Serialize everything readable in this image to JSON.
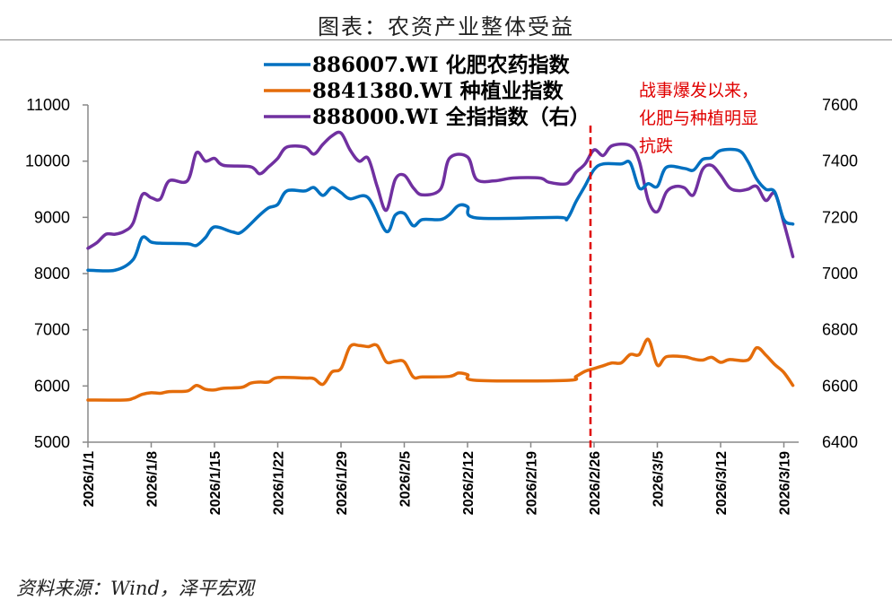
{
  "title": "图表：农资产业整体受益",
  "source": "资料来源：Wind，泽平宏观",
  "chart_data": {
    "type": "line",
    "title": "图表：农资产业整体受益",
    "x_ticks": [
      "2026/1/1",
      "2026/1/8",
      "2026/1/15",
      "2026/1/22",
      "2026/1/29",
      "2026/2/5",
      "2026/2/12",
      "2026/2/19",
      "2026/2/26",
      "2026/3/5",
      "2026/3/12",
      "2026/3/19"
    ],
    "y_left": {
      "range": [
        5000,
        11000
      ],
      "ticks": [
        5000,
        6000,
        7000,
        8000,
        9000,
        10000,
        11000
      ]
    },
    "y_right": {
      "range": [
        6400,
        7600
      ],
      "ticks": [
        6400,
        6600,
        6800,
        7000,
        7200,
        7400,
        7600
      ]
    },
    "grid": false,
    "legend_placement": "top-center",
    "annotation": {
      "date": "2026/2/26",
      "lines": [
        "战事爆发以来，",
        "化肥与种植明显",
        "抗跌"
      ],
      "color": "#e00000",
      "style": "dashed-vertical"
    },
    "series": [
      {
        "name": "886007.WI 化肥农药指数",
        "axis": "left",
        "color": "#0070c0",
        "points": [
          [
            "2026/1/1",
            8060
          ],
          [
            "2026/1/4",
            8060
          ],
          [
            "2026/1/6",
            8250
          ],
          [
            "2026/1/7",
            8640
          ],
          [
            "2026/1/8",
            8560
          ],
          [
            "2026/1/9",
            8540
          ],
          [
            "2026/1/12",
            8530
          ],
          [
            "2026/1/13",
            8500
          ],
          [
            "2026/1/14",
            8640
          ],
          [
            "2026/1/15",
            8830
          ],
          [
            "2026/1/17",
            8740
          ],
          [
            "2026/1/18",
            8740
          ],
          [
            "2026/1/20",
            9040
          ],
          [
            "2026/1/21",
            9170
          ],
          [
            "2026/1/22",
            9230
          ],
          [
            "2026/1/23",
            9470
          ],
          [
            "2026/1/25",
            9470
          ],
          [
            "2026/1/26",
            9530
          ],
          [
            "2026/1/27",
            9390
          ],
          [
            "2026/1/28",
            9530
          ],
          [
            "2026/1/29",
            9440
          ],
          [
            "2026/1/30",
            9330
          ],
          [
            "2026/2/1",
            9350
          ],
          [
            "2026/2/3",
            8750
          ],
          [
            "2026/2/4",
            9040
          ],
          [
            "2026/2/5",
            9070
          ],
          [
            "2026/2/6",
            8850
          ],
          [
            "2026/2/7",
            8960
          ],
          [
            "2026/2/9",
            8960
          ],
          [
            "2026/2/10",
            9050
          ],
          [
            "2026/2/11",
            9210
          ],
          [
            "2026/2/12",
            9190
          ],
          [
            "2026/2/13",
            8990
          ],
          [
            "2026/2/22",
            9000
          ],
          [
            "2026/2/23",
            8970
          ],
          [
            "2026/2/24",
            9280
          ],
          [
            "2026/2/25",
            9560
          ],
          [
            "2026/2/26",
            9850
          ],
          [
            "2026/2/27",
            9950
          ],
          [
            "2026/3/1",
            9950
          ],
          [
            "2026/3/2",
            9970
          ],
          [
            "2026/3/3",
            9520
          ],
          [
            "2026/3/4",
            9600
          ],
          [
            "2026/3/5",
            9550
          ],
          [
            "2026/3/6",
            9890
          ],
          [
            "2026/3/8",
            9870
          ],
          [
            "2026/3/9",
            9840
          ],
          [
            "2026/3/10",
            10030
          ],
          [
            "2026/3/11",
            10060
          ],
          [
            "2026/3/12",
            10190
          ],
          [
            "2026/3/14",
            10190
          ],
          [
            "2026/3/15",
            10000
          ],
          [
            "2026/3/16",
            9680
          ],
          [
            "2026/3/17",
            9500
          ],
          [
            "2026/3/18",
            9450
          ],
          [
            "2026/3/19",
            8960
          ],
          [
            "2026/3/20",
            8880
          ]
        ]
      },
      {
        "name": "8841380.WI 种植业指数",
        "axis": "left",
        "color": "#e46c0a",
        "points": [
          [
            "2026/1/1",
            5750
          ],
          [
            "2026/1/5",
            5750
          ],
          [
            "2026/1/6",
            5780
          ],
          [
            "2026/1/7",
            5850
          ],
          [
            "2026/1/8",
            5880
          ],
          [
            "2026/1/9",
            5870
          ],
          [
            "2026/1/10",
            5900
          ],
          [
            "2026/1/12",
            5910
          ],
          [
            "2026/1/13",
            6010
          ],
          [
            "2026/1/14",
            5940
          ],
          [
            "2026/1/15",
            5930
          ],
          [
            "2026/1/16",
            5960
          ],
          [
            "2026/1/18",
            5975
          ],
          [
            "2026/1/19",
            6050
          ],
          [
            "2026/1/20",
            6070
          ],
          [
            "2026/1/21",
            6070
          ],
          [
            "2026/1/22",
            6150
          ],
          [
            "2026/1/25",
            6140
          ],
          [
            "2026/1/26",
            6130
          ],
          [
            "2026/1/27",
            6030
          ],
          [
            "2026/1/28",
            6250
          ],
          [
            "2026/1/29",
            6310
          ],
          [
            "2026/1/30",
            6700
          ],
          [
            "2026/1/31",
            6720
          ],
          [
            "2026/2/1",
            6700
          ],
          [
            "2026/2/2",
            6720
          ],
          [
            "2026/2/3",
            6430
          ],
          [
            "2026/2/4",
            6440
          ],
          [
            "2026/2/5",
            6430
          ],
          [
            "2026/2/6",
            6160
          ],
          [
            "2026/2/7",
            6160
          ],
          [
            "2026/2/10",
            6170
          ],
          [
            "2026/2/11",
            6230
          ],
          [
            "2026/2/12",
            6200
          ],
          [
            "2026/2/13",
            6100
          ],
          [
            "2026/2/23",
            6100
          ],
          [
            "2026/2/24",
            6170
          ],
          [
            "2026/2/25",
            6260
          ],
          [
            "2026/2/26",
            6310
          ],
          [
            "2026/2/27",
            6360
          ],
          [
            "2026/2/28",
            6410
          ],
          [
            "2026/3/1",
            6410
          ],
          [
            "2026/3/2",
            6560
          ],
          [
            "2026/3/3",
            6560
          ],
          [
            "2026/3/4",
            6830
          ],
          [
            "2026/3/5",
            6370
          ],
          [
            "2026/3/6",
            6520
          ],
          [
            "2026/3/8",
            6520
          ],
          [
            "2026/3/9",
            6480
          ],
          [
            "2026/3/10",
            6460
          ],
          [
            "2026/3/11",
            6510
          ],
          [
            "2026/3/12",
            6420
          ],
          [
            "2026/3/13",
            6470
          ],
          [
            "2026/3/15",
            6460
          ],
          [
            "2026/3/16",
            6680
          ],
          [
            "2026/3/17",
            6550
          ],
          [
            "2026/3/18",
            6380
          ],
          [
            "2026/3/19",
            6240
          ],
          [
            "2026/3/20",
            6010
          ]
        ]
      },
      {
        "name": "888000.WI 全指指数（右）",
        "axis": "right",
        "color": "#7030a0",
        "points": [
          [
            "2026/1/1",
            7090
          ],
          [
            "2026/1/2",
            7110
          ],
          [
            "2026/1/3",
            7140
          ],
          [
            "2026/1/4",
            7140
          ],
          [
            "2026/1/5",
            7150
          ],
          [
            "2026/1/6",
            7180
          ],
          [
            "2026/1/7",
            7280
          ],
          [
            "2026/1/8",
            7270
          ],
          [
            "2026/1/9",
            7265
          ],
          [
            "2026/1/10",
            7330
          ],
          [
            "2026/1/12",
            7330
          ],
          [
            "2026/1/13",
            7430
          ],
          [
            "2026/1/14",
            7400
          ],
          [
            "2026/1/15",
            7410
          ],
          [
            "2026/1/16",
            7385
          ],
          [
            "2026/1/19",
            7380
          ],
          [
            "2026/1/20",
            7355
          ],
          [
            "2026/1/21",
            7380
          ],
          [
            "2026/1/22",
            7410
          ],
          [
            "2026/1/23",
            7450
          ],
          [
            "2026/1/25",
            7450
          ],
          [
            "2026/1/26",
            7425
          ],
          [
            "2026/1/27",
            7460
          ],
          [
            "2026/1/28",
            7490
          ],
          [
            "2026/1/29",
            7500
          ],
          [
            "2026/1/30",
            7440
          ],
          [
            "2026/1/31",
            7400
          ],
          [
            "2026/2/1",
            7410
          ],
          [
            "2026/2/2",
            7310
          ],
          [
            "2026/2/3",
            7225
          ],
          [
            "2026/2/4",
            7335
          ],
          [
            "2026/2/5",
            7350
          ],
          [
            "2026/2/6",
            7305
          ],
          [
            "2026/2/7",
            7280
          ],
          [
            "2026/2/9",
            7300
          ],
          [
            "2026/2/10",
            7410
          ],
          [
            "2026/2/12",
            7415
          ],
          [
            "2026/2/13",
            7335
          ],
          [
            "2026/2/15",
            7330
          ],
          [
            "2026/2/17",
            7340
          ],
          [
            "2026/2/20",
            7340
          ],
          [
            "2026/2/21",
            7325
          ],
          [
            "2026/2/23",
            7320
          ],
          [
            "2026/2/24",
            7360
          ],
          [
            "2026/2/25",
            7390
          ],
          [
            "2026/2/26",
            7440
          ],
          [
            "2026/2/27",
            7420
          ],
          [
            "2026/2/28",
            7455
          ],
          [
            "2026/3/2",
            7455
          ],
          [
            "2026/3/3",
            7400
          ],
          [
            "2026/3/4",
            7260
          ],
          [
            "2026/3/5",
            7220
          ],
          [
            "2026/3/6",
            7290
          ],
          [
            "2026/3/7",
            7310
          ],
          [
            "2026/3/8",
            7305
          ],
          [
            "2026/3/9",
            7280
          ],
          [
            "2026/3/10",
            7370
          ],
          [
            "2026/3/11",
            7385
          ],
          [
            "2026/3/12",
            7350
          ],
          [
            "2026/3/13",
            7305
          ],
          [
            "2026/3/14",
            7295
          ],
          [
            "2026/3/15",
            7300
          ],
          [
            "2026/3/16",
            7310
          ],
          [
            "2026/3/17",
            7260
          ],
          [
            "2026/3/18",
            7285
          ],
          [
            "2026/3/19",
            7180
          ],
          [
            "2026/3/20",
            7060
          ]
        ]
      }
    ]
  }
}
